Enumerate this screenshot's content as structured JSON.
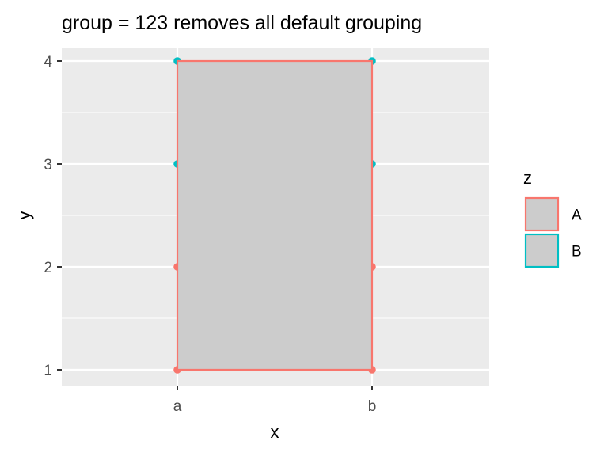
{
  "chart_data": {
    "type": "scatter",
    "title": "group = 123 removes all default grouping",
    "xlabel": "x",
    "ylabel": "y",
    "x_categories": [
      "a",
      "b"
    ],
    "y_ticks": [
      1,
      2,
      3,
      4
    ],
    "ylim": [
      0.85,
      4.1
    ],
    "grid": true,
    "legend": {
      "title": "z",
      "placement": "right",
      "entries": [
        {
          "label": "A",
          "color": "#F8766D",
          "fill": "#CCCCCC"
        },
        {
          "label": "B",
          "color": "#00BFC4",
          "fill": "#CCCCCC"
        }
      ]
    },
    "series": [
      {
        "name": "A",
        "color": "#F8766D",
        "points": [
          {
            "x": "a",
            "y": 1
          },
          {
            "x": "a",
            "y": 2
          },
          {
            "x": "b",
            "y": 1
          },
          {
            "x": "b",
            "y": 2
          }
        ]
      },
      {
        "name": "B",
        "color": "#00BFC4",
        "points": [
          {
            "x": "a",
            "y": 3
          },
          {
            "x": "a",
            "y": 4
          },
          {
            "x": "b",
            "y": 3
          },
          {
            "x": "b",
            "y": 4
          }
        ]
      }
    ],
    "polygon": {
      "outline_color": "#F8766D",
      "fill_color": "#CCCCCC",
      "vertices": [
        {
          "x": "a",
          "y": 1
        },
        {
          "x": "a",
          "y": 4
        },
        {
          "x": "b",
          "y": 4
        },
        {
          "x": "b",
          "y": 1
        }
      ]
    },
    "panel_background": "#EBEBEB",
    "grid_color": "#FFFFFF"
  }
}
